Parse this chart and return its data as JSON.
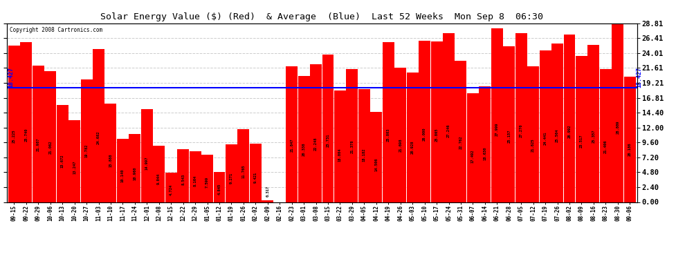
{
  "title": "Solar Energy Value ($) (Red)  & Average  (Blue)  Last 52 Weeks  Mon Sep 8  06:30",
  "copyright": "Copyright 2008 Cartronics.com",
  "average": 18.427,
  "bar_color": "#ff0000",
  "avg_line_color": "#0000ff",
  "background_color": "#ffffff",
  "grid_color": "#cccccc",
  "yticks": [
    0.0,
    2.4,
    4.8,
    7.2,
    9.6,
    12.0,
    14.4,
    16.81,
    19.21,
    21.61,
    24.01,
    26.41,
    28.81
  ],
  "ylim": [
    0.0,
    28.81
  ],
  "labels": [
    "09-15",
    "09-22",
    "09-29",
    "10-06",
    "10-13",
    "10-20",
    "10-27",
    "11-03",
    "11-10",
    "11-17",
    "11-24",
    "12-01",
    "12-08",
    "12-15",
    "12-22",
    "12-29",
    "01-05",
    "01-12",
    "01-19",
    "01-26",
    "02-02",
    "02-09",
    "02-16",
    "02-23",
    "03-01",
    "03-08",
    "03-15",
    "03-22",
    "03-29",
    "04-05",
    "04-12",
    "04-19",
    "04-26",
    "05-03",
    "05-10",
    "05-17",
    "05-24",
    "05-31",
    "06-07",
    "06-14",
    "06-21",
    "06-28",
    "07-05",
    "07-12",
    "07-19",
    "07-26",
    "08-02",
    "08-09",
    "08-16",
    "08-23",
    "08-30",
    "09-06"
  ],
  "values": [
    25.225,
    25.74,
    21.987,
    21.062,
    15.672,
    13.247,
    19.782,
    24.682,
    15.888,
    10.14,
    10.96,
    14.997,
    9.044,
    4.724,
    8.543,
    8.164,
    7.599,
    4.845,
    9.271,
    11.765,
    9.421,
    0.317,
    0.0,
    21.847,
    20.338,
    22.248,
    23.731,
    18.004,
    21.378,
    18.182,
    14.506,
    25.803,
    21.698,
    20.928,
    26.0,
    25.865,
    27.246,
    22.762,
    17.492,
    18.63,
    27.999,
    25.157,
    27.27,
    21.825,
    24.441,
    25.504,
    26.992,
    23.517,
    25.357,
    21.406,
    28.809,
    20.186
  ]
}
